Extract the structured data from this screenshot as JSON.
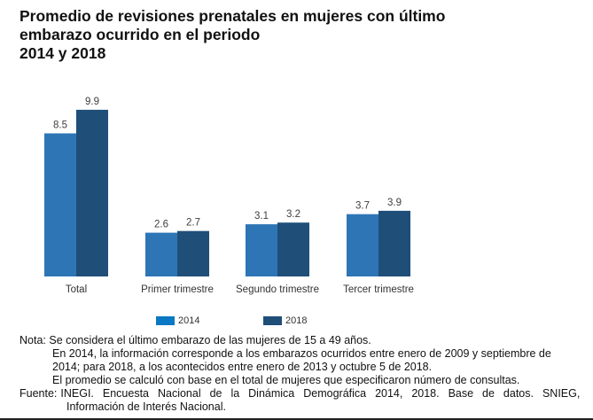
{
  "title": {
    "lines": [
      "Promedio de revisiones prenatales en mujeres con último",
      "embarazo ocurrido en el periodo",
      "2014 y 2018"
    ]
  },
  "chart_data": {
    "type": "bar",
    "title": "Promedio de revisiones prenatales en mujeres con último embarazo ocurrido en el periodo 2014 y 2018",
    "categories": [
      "Total",
      "Primer trimestre",
      "Segundo trimestre",
      "Tercer trimestre"
    ],
    "series": [
      {
        "name": "2014",
        "values": [
          8.5,
          2.6,
          3.1,
          3.7
        ],
        "color": "#2E75B6"
      },
      {
        "name": "2018",
        "values": [
          9.9,
          2.7,
          3.2,
          3.9
        ],
        "color": "#1F4E79"
      }
    ],
    "value_labels": {
      "2014": [
        "8.5",
        "2.6",
        "3.1",
        "3.7"
      ],
      "2018": [
        "9.9",
        "2.7",
        "3.2",
        "3.9"
      ]
    },
    "xlabel": "",
    "ylabel": "",
    "ylim": [
      0,
      10
    ],
    "grid": false,
    "legend_position": "bottom",
    "legend_colors": {
      "2014": "#0A78C2",
      "2018": "#1F4E79"
    }
  },
  "legend": {
    "items": [
      {
        "label": "2014",
        "color": "#0A78C2"
      },
      {
        "label": "2018",
        "color": "#1F4E79"
      }
    ]
  },
  "notes": {
    "nota_label": "Nota:",
    "nota_line1": "Se considera el último embarazo de las mujeres de 15 a 49 años.",
    "nota_line2": "En 2014, la información corresponde a los embarazos ocurridos entre enero de 2009 y septiembre de",
    "nota_line3": "2014; para 2018, a los acontecidos entre enero de 2013 y octubre 5 de 2018.",
    "nota_line4": "El promedio se calculó con base en el total de mujeres que especificaron número de consultas.",
    "fuente_label": "Fuente:",
    "fuente_words": [
      "INEGI.",
      "Encuesta",
      "Nacional",
      "de",
      "la",
      "Dinámica",
      "Demográfica",
      "2014,",
      "2018.",
      "Base",
      "de",
      "datos.",
      "SNIEG,"
    ],
    "fuente_line2": "Información de Interés Nacional."
  }
}
